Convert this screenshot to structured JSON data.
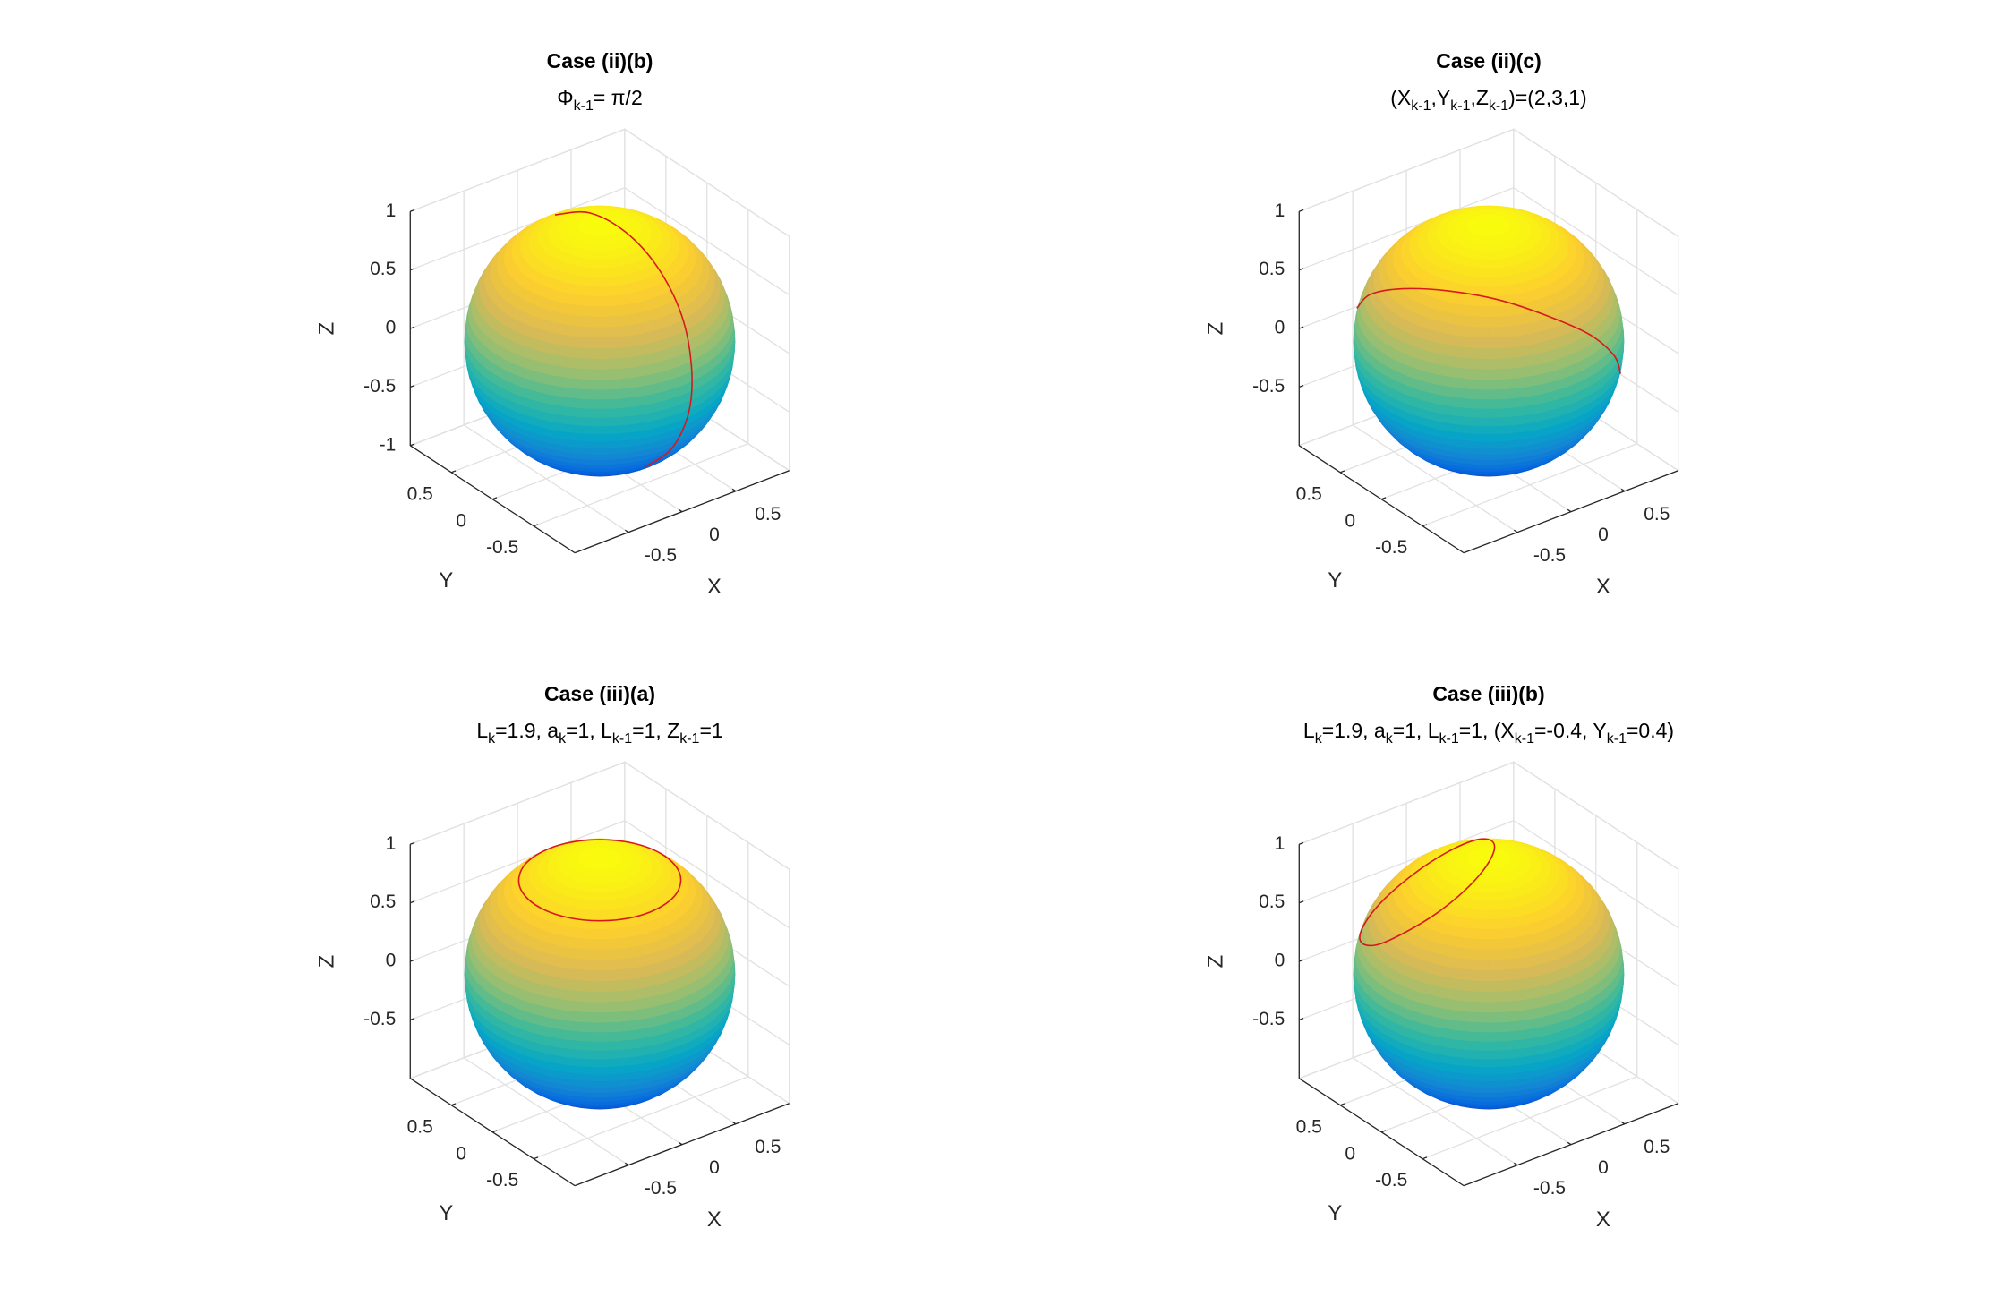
{
  "chart_data": [
    {
      "type": "sphere3d",
      "title": "Case (ii)(b)",
      "subtitle": [
        "Φ",
        {
          "sub": "k-1"
        },
        "= π/2"
      ],
      "xlabel": "X",
      "ylabel": "Y",
      "zlabel": "Z",
      "xlim": [
        -1,
        1
      ],
      "ylim": [
        -1,
        1
      ],
      "zlim": [
        -1,
        1
      ],
      "xticks": [
        -0.5,
        0,
        0.5
      ],
      "yticks": [
        -0.5,
        0,
        0.5
      ],
      "zticks": [
        -1,
        -0.5,
        0,
        0.5,
        1
      ],
      "grid": true,
      "colormap": "parula",
      "series": [
        {
          "color": "#d7191c",
          "closed": false,
          "x": [
            0.02,
            0.07,
            0.11,
            0.13,
            0.13,
            0.11,
            0.08,
            0.03,
            -0.02
          ],
          "y": [
            0.57,
            0.22,
            -0.17,
            -0.53,
            -0.82,
            -0.97,
            -0.98,
            -0.84,
            -0.57
          ],
          "z": [
            0.81,
            0.97,
            0.97,
            0.83,
            0.56,
            0.2,
            -0.18,
            -0.54,
            -0.81
          ]
        }
      ]
    },
    {
      "type": "sphere3d",
      "title": "Case (ii)(c)",
      "subtitle": [
        "(X",
        {
          "sub": "k-1"
        },
        ",Y",
        {
          "sub": "k-1"
        },
        ",Z",
        {
          "sub": "k-1"
        },
        ")=(2,3,1)"
      ],
      "xlabel": "X",
      "ylabel": "Y",
      "zlabel": "Z",
      "xlim": [
        -1,
        1
      ],
      "ylim": [
        -1,
        1
      ],
      "zlim": [
        -1,
        1
      ],
      "xticks": [
        -0.5,
        0,
        0.5
      ],
      "yticks": [
        -0.5,
        0,
        0.5
      ],
      "zticks": [
        -0.5,
        0,
        0.5,
        1
      ],
      "grid": true,
      "colormap": "parula",
      "series": [
        {
          "color": "#d7191c",
          "closed": false,
          "x": [
            -0.7,
            -0.78,
            -0.74,
            -0.59,
            -0.35,
            -0.06,
            0.25,
            0.51,
            0.7
          ],
          "y": [
            0.69,
            0.42,
            0.08,
            -0.27,
            -0.58,
            -0.8,
            -0.9,
            -0.86,
            -0.69
          ],
          "z": [
            0.21,
            0.48,
            0.67,
            0.76,
            0.74,
            0.6,
            0.38,
            0.09,
            -0.21
          ]
        }
      ]
    },
    {
      "type": "sphere3d",
      "title": "Case (iii)(a)",
      "subtitle": [
        "L",
        {
          "sub": "k"
        },
        "=1.9, a",
        {
          "sub": "k"
        },
        "=1, L",
        {
          "sub": "k-1"
        },
        "=1, Z",
        {
          "sub": "k-1"
        },
        "=1"
      ],
      "xlabel": "X",
      "ylabel": "Y",
      "zlabel": "Z",
      "xlim": [
        -1,
        1
      ],
      "ylim": [
        -1,
        1
      ],
      "zlim": [
        -1,
        1
      ],
      "xticks": [
        -0.5,
        0,
        0.5
      ],
      "yticks": [
        -0.5,
        0,
        0.5
      ],
      "zticks": [
        -0.5,
        0,
        0.5,
        1
      ],
      "grid": true,
      "colormap": "parula",
      "series": [
        {
          "color": "#d7191c",
          "closed": true,
          "x": [
            0.6,
            0.52,
            0.3,
            0,
            -0.3,
            -0.52,
            -0.6,
            -0.52,
            -0.3,
            0,
            0.3,
            0.52
          ],
          "y": [
            0,
            0.3,
            0.52,
            0.6,
            0.52,
            0.3,
            0,
            -0.3,
            -0.52,
            -0.6,
            -0.52,
            -0.3
          ],
          "z": [
            0.8,
            0.8,
            0.8,
            0.8,
            0.8,
            0.8,
            0.8,
            0.8,
            0.8,
            0.8,
            0.8,
            0.8
          ]
        }
      ]
    },
    {
      "type": "sphere3d",
      "title": "Case (iii)(b)",
      "subtitle": [
        "L",
        {
          "sub": "k"
        },
        "=1.9, a",
        {
          "sub": "k"
        },
        "=1, L",
        {
          "sub": "k-1"
        },
        "=1, (X",
        {
          "sub": "k-1"
        },
        "=-0.4, Y",
        {
          "sub": "k-1"
        },
        "=0.4)"
      ],
      "xlabel": "X",
      "ylabel": "Y",
      "zlabel": "Z",
      "xlim": [
        -1,
        1
      ],
      "ylim": [
        -1,
        1
      ],
      "zlim": [
        -1,
        1
      ],
      "xticks": [
        -0.5,
        0,
        0.5
      ],
      "yticks": [
        -0.5,
        0,
        0.5
      ],
      "zticks": [
        -0.5,
        0,
        0.5,
        1
      ],
      "grid": true,
      "colormap": "parula",
      "series": [
        {
          "color": "#d7191c",
          "closed": true,
          "x": [
            0.21,
            0.28,
            0.19,
            -0.02,
            -0.31,
            -0.59,
            -0.79,
            -0.86,
            -0.77,
            -0.56,
            -0.27,
            0.01
          ],
          "y": [
            0.22,
            0.5,
            0.75,
            0.89,
            0.9,
            0.76,
            0.52,
            0.24,
            0,
            -0.15,
            -0.16,
            -0.02
          ],
          "z": [
            0.95,
            0.82,
            0.63,
            0.45,
            0.31,
            0.26,
            0.31,
            0.44,
            0.63,
            0.81,
            0.95,
            1
          ]
        }
      ]
    }
  ]
}
